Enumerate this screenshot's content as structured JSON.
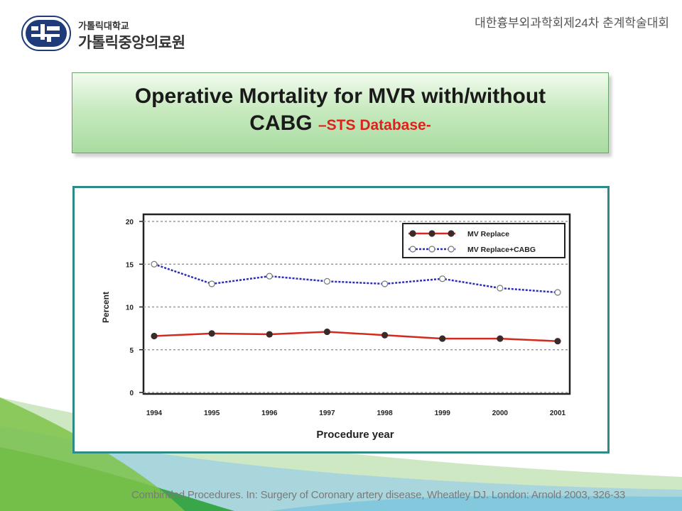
{
  "header": {
    "logo_small": "가톨릭대학교",
    "logo_big": "가톨릭중앙의료원",
    "conference": "대한흉부외과학회제24차 춘계학술대회"
  },
  "slide": {
    "title_line1": "Operative Mortality for MVR with/without",
    "title_line2": "CABG",
    "title_sub": "–STS Database-"
  },
  "citation": "Combinded Procedures. In: Surgery of Coronary artery disease, Wheatley DJ. London: Arnold 2003, 326-33",
  "colors": {
    "accent": "#2e8a87",
    "mv_replace": "#d42a1e",
    "mv_replace_cabg": "#2b2fb8",
    "title_red": "#e0211b"
  },
  "chart_data": {
    "type": "line",
    "xlabel": "Procedure year",
    "ylabel": "Percent",
    "ylim": [
      0,
      20
    ],
    "yticks": [
      0,
      5,
      10,
      15,
      20
    ],
    "categories": [
      "1994",
      "1995",
      "1996",
      "1997",
      "1998",
      "1999",
      "2000",
      "2001"
    ],
    "grid": true,
    "legend_position": "top-right",
    "series": [
      {
        "name": "MV Replace",
        "values": [
          6.6,
          6.9,
          6.8,
          7.1,
          6.7,
          6.3,
          6.3,
          6.0
        ]
      },
      {
        "name": "MV Replace+CABG",
        "values": [
          15.0,
          12.7,
          13.6,
          13.0,
          12.7,
          13.3,
          12.2,
          11.7
        ]
      }
    ]
  }
}
